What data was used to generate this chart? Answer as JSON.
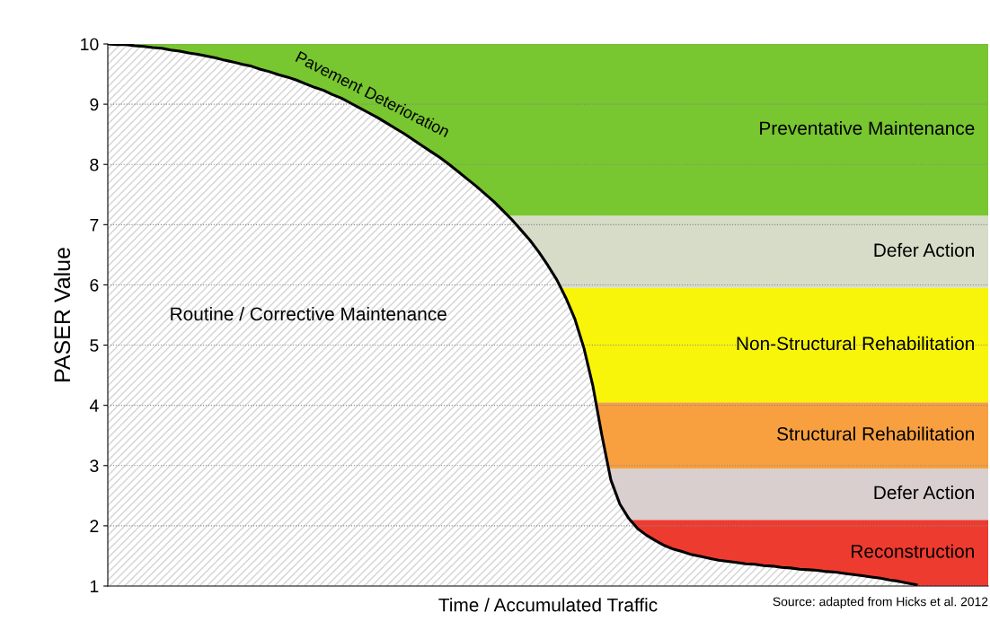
{
  "chart_data": {
    "type": "area",
    "ylabel": "PASER Value",
    "xlabel": "Time / Accumulated Traffic",
    "categories": [
      null,
      null,
      null,
      null,
      null,
      null,
      null,
      null,
      null,
      null,
      null,
      null,
      null,
      null,
      null,
      null,
      null,
      null,
      null,
      null,
      null,
      null,
      null,
      null,
      null,
      null,
      null,
      null,
      null,
      null,
      null,
      null,
      null,
      null,
      null,
      null,
      null,
      null,
      null,
      null,
      null,
      null,
      null,
      null,
      null,
      null,
      null,
      null,
      null,
      null,
      null,
      null,
      null,
      null,
      null,
      null,
      null,
      null,
      null,
      null,
      null,
      null,
      null,
      null,
      null,
      null,
      null,
      null,
      null,
      null,
      null,
      null,
      null,
      null,
      null,
      null,
      null,
      null,
      null,
      null,
      null,
      null,
      null,
      null,
      null,
      null,
      null,
      null,
      null,
      null,
      null
    ],
    "series": [
      {
        "color": "#000000",
        "values": [
          10.0,
          9.99,
          9.99,
          9.97,
          9.96,
          9.94,
          9.93,
          9.9,
          9.88,
          9.85,
          9.83,
          9.8,
          9.77,
          9.73,
          9.7,
          9.66,
          9.63,
          9.58,
          9.54,
          9.49,
          9.45,
          9.4,
          9.34,
          9.28,
          9.23,
          9.16,
          9.1,
          9.02,
          8.94,
          8.86,
          8.78,
          8.69,
          8.6,
          8.51,
          8.41,
          8.31,
          8.21,
          8.11,
          8.0,
          7.88,
          7.76,
          7.64,
          7.51,
          7.38,
          7.23,
          7.08,
          6.91,
          6.74,
          6.54,
          6.32,
          6.08,
          5.78,
          5.43,
          4.95,
          4.32,
          3.5,
          2.76,
          2.36,
          2.12,
          1.95,
          1.84,
          1.75,
          1.67,
          1.61,
          1.57,
          1.52,
          1.49,
          1.46,
          1.43,
          1.41,
          1.39,
          1.37,
          1.36,
          1.34,
          1.33,
          1.31,
          1.3,
          1.28,
          1.27,
          1.26,
          1.24,
          1.23,
          1.21,
          1.19,
          1.17,
          1.15,
          1.13,
          1.1,
          1.08,
          1.05,
          1.02
        ]
      }
    ],
    "ylim": [
      1,
      10
    ],
    "yticks": [
      1,
      2,
      3,
      4,
      5,
      6,
      7,
      8,
      9,
      10
    ],
    "grid": "y",
    "marker": "none",
    "line_style": "solid",
    "bands": [
      {
        "axis": "y",
        "from": 1,
        "to": 2.1,
        "label": "Reconstruction",
        "color": "#ee3b2f"
      },
      {
        "axis": "y",
        "from": 2.1,
        "to": 2.95,
        "label": "Defer Action",
        "color": "#d9cfcf"
      },
      {
        "axis": "y",
        "from": 2.95,
        "to": 4.05,
        "label": "Structural Rehabilitation",
        "color": "#f8a040"
      },
      {
        "axis": "y",
        "from": 4.05,
        "to": 5.95,
        "label": "Non-Structural Rehabilitation",
        "color": "#f8f50a"
      },
      {
        "axis": "y",
        "from": 5.95,
        "to": 7.15,
        "label": "Defer Action",
        "color": "#d6dcc8"
      },
      {
        "axis": "y",
        "from": 7.15,
        "to": 10,
        "label": "Preventative Maintenance",
        "color": "#78c630"
      }
    ],
    "annotations": [
      "Pavement Deterioration",
      "Routine / Corrective Maintenance",
      "Source: adapted from Hicks et al. 2012"
    ]
  }
}
